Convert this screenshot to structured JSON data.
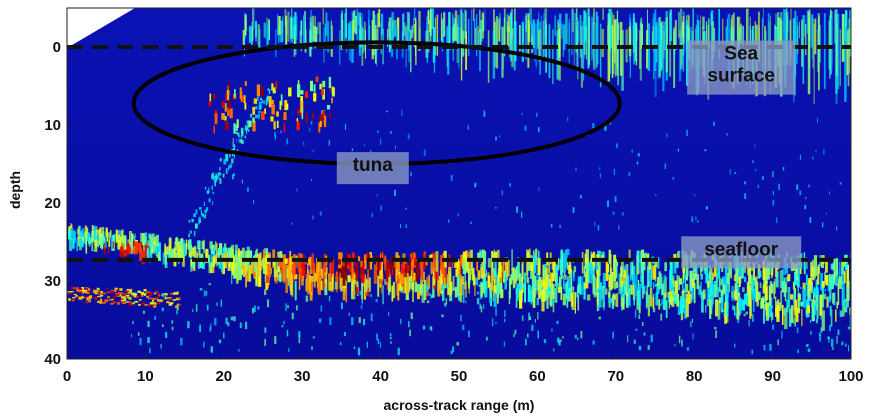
{
  "chart_data": {
    "type": "heatmap",
    "title": "",
    "xlabel": "across-track range (m)",
    "ylabel": "depth",
    "xlim": [
      0,
      100
    ],
    "ylim": [
      -5,
      40
    ],
    "y_reversed": true,
    "x_ticks": [
      "0",
      "10",
      "20",
      "30",
      "40",
      "50",
      "60",
      "70",
      "80",
      "90",
      "100"
    ],
    "y_ticks": [
      "0",
      "10",
      "20",
      "30",
      "40"
    ],
    "colormap": "jet",
    "background_color": "#0a10a8",
    "reference_lines": [
      {
        "label": "Sea surface",
        "y": 0,
        "style": "dashed"
      },
      {
        "label": "seafloor",
        "y": 27.3,
        "style": "dashed"
      }
    ],
    "annotations": [
      {
        "label_lines": [
          "Sea",
          "surface"
        ],
        "x": 86,
        "y": 0.2
      },
      {
        "label_lines": [
          "tuna"
        ],
        "x": 39,
        "y": 14.5,
        "ellipse": {
          "cx": 39.5,
          "cy": 7.2,
          "rx": 31,
          "ry": 7.8
        }
      },
      {
        "label_lines": [
          "seafloor"
        ],
        "x": 86,
        "y": 25.3
      }
    ],
    "features": {
      "surface_clutter": {
        "x_range": [
          22,
          100
        ],
        "depth_range": [
          -5,
          10
        ]
      },
      "tuna_echoes": {
        "x_range": [
          18,
          34
        ],
        "depth_range": [
          3,
          10
        ],
        "peak_depth": 6
      },
      "seafloor_band": {
        "x_range": [
          0,
          100
        ],
        "depth_range": [
          24,
          36
        ],
        "peak_range_x": [
          28,
          48
        ],
        "peak_depth": 27.5
      },
      "multipath_arc": {
        "from": [
          15,
          26
        ],
        "to": [
          26,
          5
        ]
      }
    }
  },
  "colors": {
    "ellipse": "#000000",
    "dashed_line": "#111111",
    "label_box": "#8a9bc4"
  }
}
